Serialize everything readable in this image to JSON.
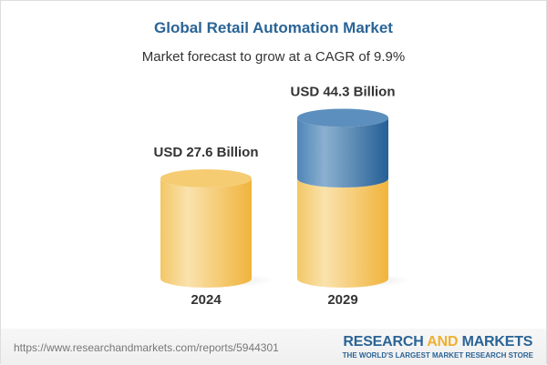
{
  "title": "Global Retail Automation Market",
  "subtitle": "Market forecast to grow at a CAGR of 9.9%",
  "chart_data": {
    "type": "bar",
    "style": "3d-cylinder",
    "categories": [
      "2024",
      "2029"
    ],
    "values": [
      27.6,
      44.3
    ],
    "data_labels": [
      "USD 27.6 Billion",
      "USD 44.3 Billion"
    ],
    "unit": "USD Billion",
    "colors": {
      "base": "#f3c35a",
      "growth": "#3f7bb0"
    }
  },
  "footer": {
    "url": "https://www.researchandmarkets.com/reports/5944301",
    "logo_part1": "RESEARCH",
    "logo_part2": "AND",
    "logo_part3": "MARKETS",
    "tagline": "THE WORLD'S LARGEST MARKET RESEARCH STORE"
  }
}
